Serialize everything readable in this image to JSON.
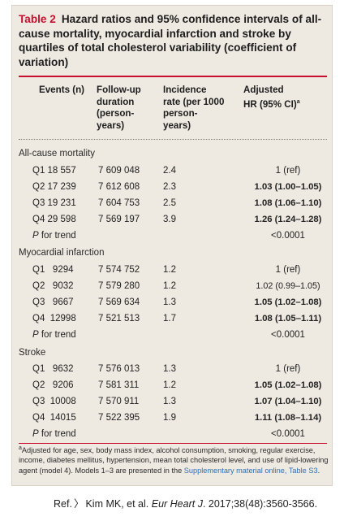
{
  "table": {
    "number": "Table 2",
    "title": "Hazard ratios and 95% confidence intervals of all-cause mortality, myocardial infarction and stroke by quartiles of total cholesterol variability (coefficient of variation)",
    "headers": {
      "events": "Events (n)",
      "followup": [
        "Follow-up",
        "duration",
        "(person-",
        "years)"
      ],
      "incidence": [
        "Incidence",
        "rate (per 1000",
        "person-",
        "years)"
      ],
      "hr": [
        "Adjusted",
        "HR (95% CI)"
      ],
      "hr_sup": "a"
    },
    "sections": [
      {
        "name": "All-cause mortality",
        "rows": [
          {
            "q": "Q1 18 557",
            "fu": "7 609 048",
            "ir": "2.4",
            "hr": "1 (ref)",
            "bold": false
          },
          {
            "q": "Q2 17 239",
            "fu": "7 612 608",
            "ir": "2.3",
            "hr": "1.03 (1.00–1.05)",
            "bold": true
          },
          {
            "q": "Q3 19 231",
            "fu": "7 604 753",
            "ir": "2.5",
            "hr": "1.08 (1.06–1.10)",
            "bold": true
          },
          {
            "q": "Q4 29 598",
            "fu": "7 569 197",
            "ir": "3.9",
            "hr": "1.26 (1.24–1.28)",
            "bold": true
          }
        ],
        "trend": "<0.0001"
      },
      {
        "name": "Myocardial infarction",
        "rows": [
          {
            "q": "Q1   9294",
            "fu": "7 574 752",
            "ir": "1.2",
            "hr": "1 (ref)",
            "bold": false
          },
          {
            "q": "Q2   9032",
            "fu": "7 579 280",
            "ir": "1.2",
            "hr": "1.02 (0.99–1.05)",
            "bold": false
          },
          {
            "q": "Q3   9667",
            "fu": "7 569 634",
            "ir": "1.3",
            "hr": "1.05 (1.02–1.08)",
            "bold": true
          },
          {
            "q": "Q4  12998",
            "fu": "7 521 513",
            "ir": "1.7",
            "hr": "1.08 (1.05–1.11)",
            "bold": true
          }
        ],
        "trend": "<0.0001"
      },
      {
        "name": "Stroke",
        "rows": [
          {
            "q": "Q1   9632",
            "fu": "7 576 013",
            "ir": "1.3",
            "hr": "1 (ref)",
            "bold": false
          },
          {
            "q": "Q2   9206",
            "fu": "7 581 311",
            "ir": "1.2",
            "hr": "1.05 (1.02–1.08)",
            "bold": true
          },
          {
            "q": "Q3  10008",
            "fu": "7 570 911",
            "ir": "1.3",
            "hr": "1.07 (1.04–1.10)",
            "bold": true
          },
          {
            "q": "Q4  14015",
            "fu": "7 522 395",
            "ir": "1.9",
            "hr": "1.11 (1.08–1.14)",
            "bold": true
          }
        ],
        "trend": "<0.0001"
      }
    ],
    "trend_label_p": "P",
    "trend_label_rest": " for trend",
    "footnote": {
      "sup": "a",
      "text": "Adjusted for age, sex, body mass index, alcohol consumption, smoking, regular exercise, income, diabetes mellitus, hypertension, mean total cholesterol level, and use of lipid-lowering agent (model 4). Models 1–3 are presented in the ",
      "link": "Supplementary material online, Table S3",
      "end": "."
    },
    "colors": {
      "accent": "#c8102e",
      "background": "#eeeae2",
      "link": "#2f6fb3"
    }
  },
  "reference": {
    "prefix": "Ref.",
    "arrow": "〉",
    "authors": "Kim MK, et al. ",
    "journal": "Eur Heart J",
    "citation": ". 2017;38(48):3560-3566."
  }
}
